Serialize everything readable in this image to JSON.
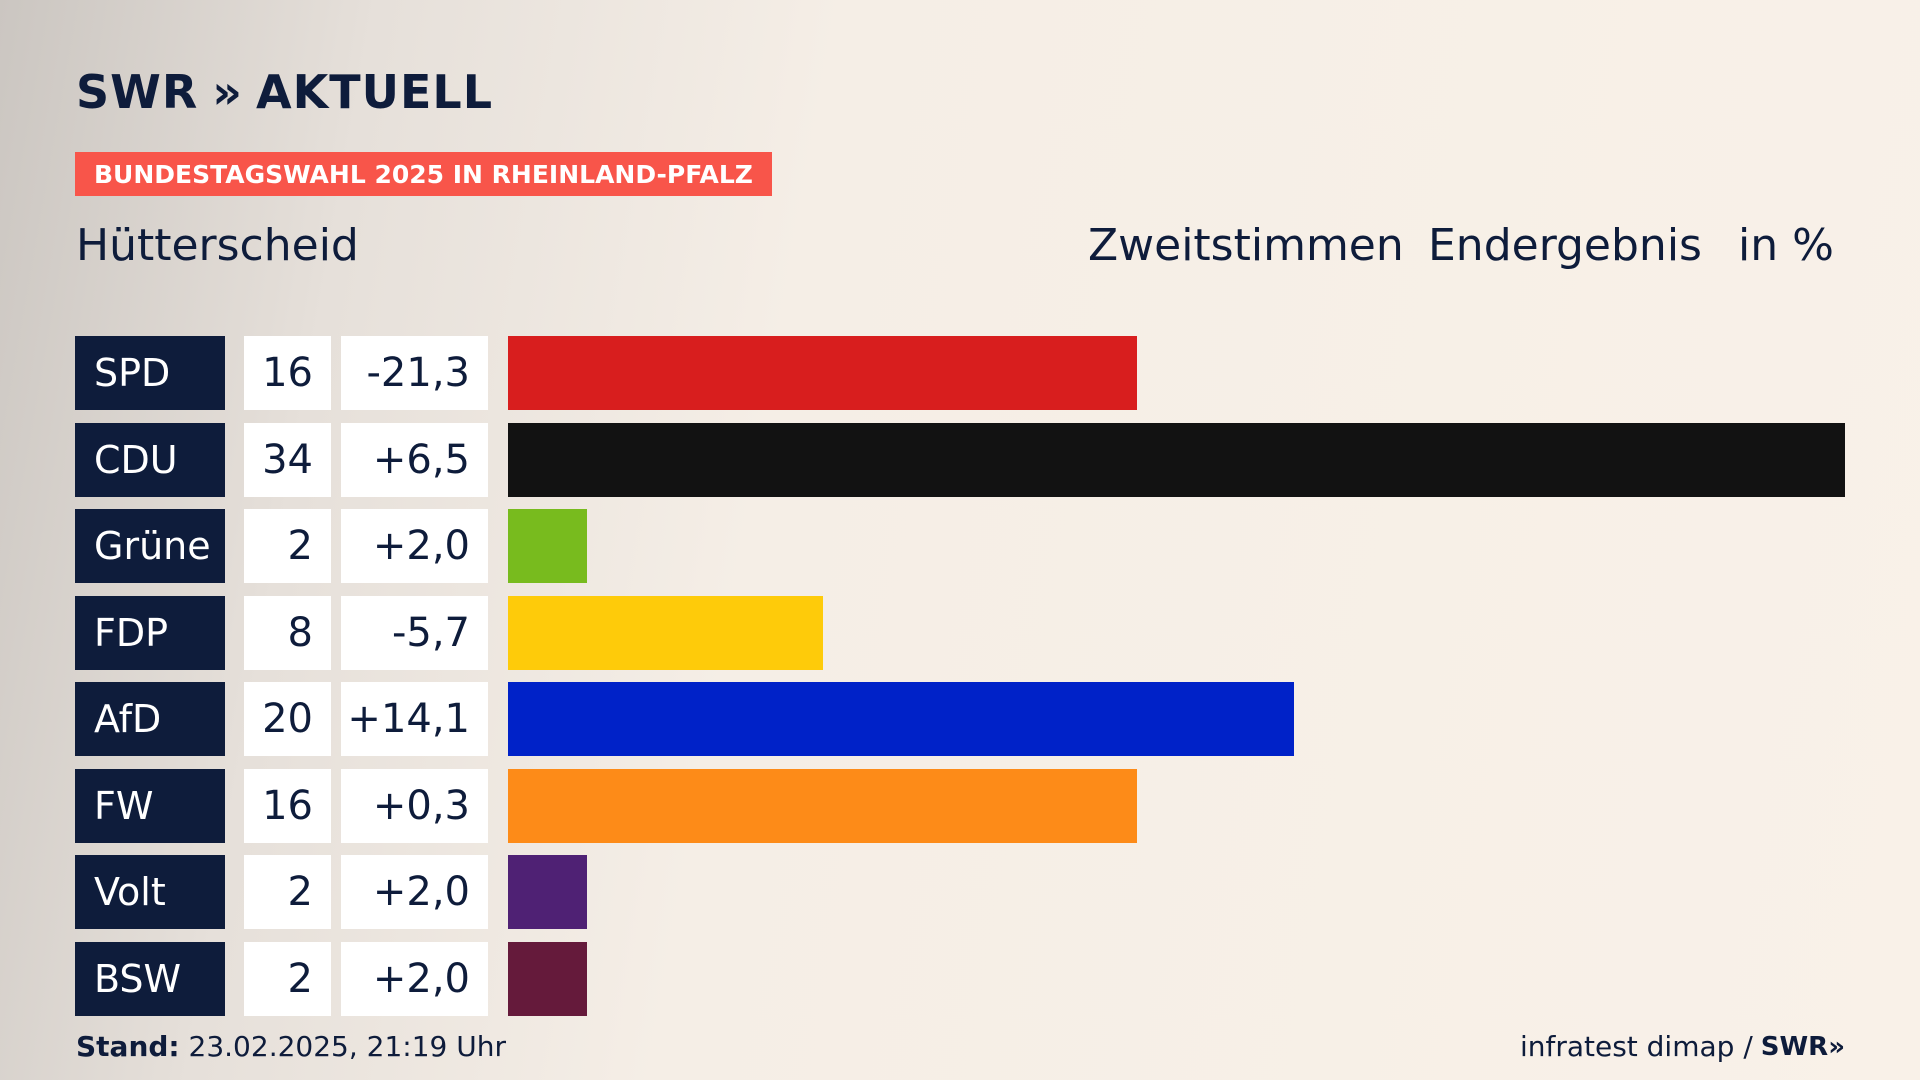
{
  "header": {
    "logo_text": "SWR",
    "logo_chevrons": "»",
    "logo_suffix": "AKTUELL",
    "badge": "BUNDESTAGSWAHL 2025 IN RHEINLAND-PFALZ",
    "place": "Hütterscheid",
    "vote_type": "Zweitstimmen",
    "result_type": "Endergebnis",
    "unit": "in %"
  },
  "chart_data": {
    "type": "bar",
    "title": "Hütterscheid",
    "categories": [
      "SPD",
      "CDU",
      "Grüne",
      "FDP",
      "AfD",
      "FW",
      "Volt",
      "BSW"
    ],
    "values": [
      16,
      34,
      2,
      8,
      20,
      16,
      2,
      2
    ],
    "differences": [
      "-21,3",
      "+6,5",
      "+2,0",
      "-5,7",
      "+14,1",
      "+0,3",
      "+2,0",
      "+2,0"
    ],
    "colors": [
      "#d81e1e",
      "#121212",
      "#78bb1e",
      "#fecb0a",
      "#0022c8",
      "#fd8b18",
      "#4f2174",
      "#651a3b"
    ],
    "xlim": [
      0,
      34
    ]
  },
  "footer": {
    "stand_label": "Stand:",
    "stand_value": "23.02.2025, 21:19 Uhr",
    "source": "infratest dimap /",
    "source_logo": "SWR»"
  }
}
